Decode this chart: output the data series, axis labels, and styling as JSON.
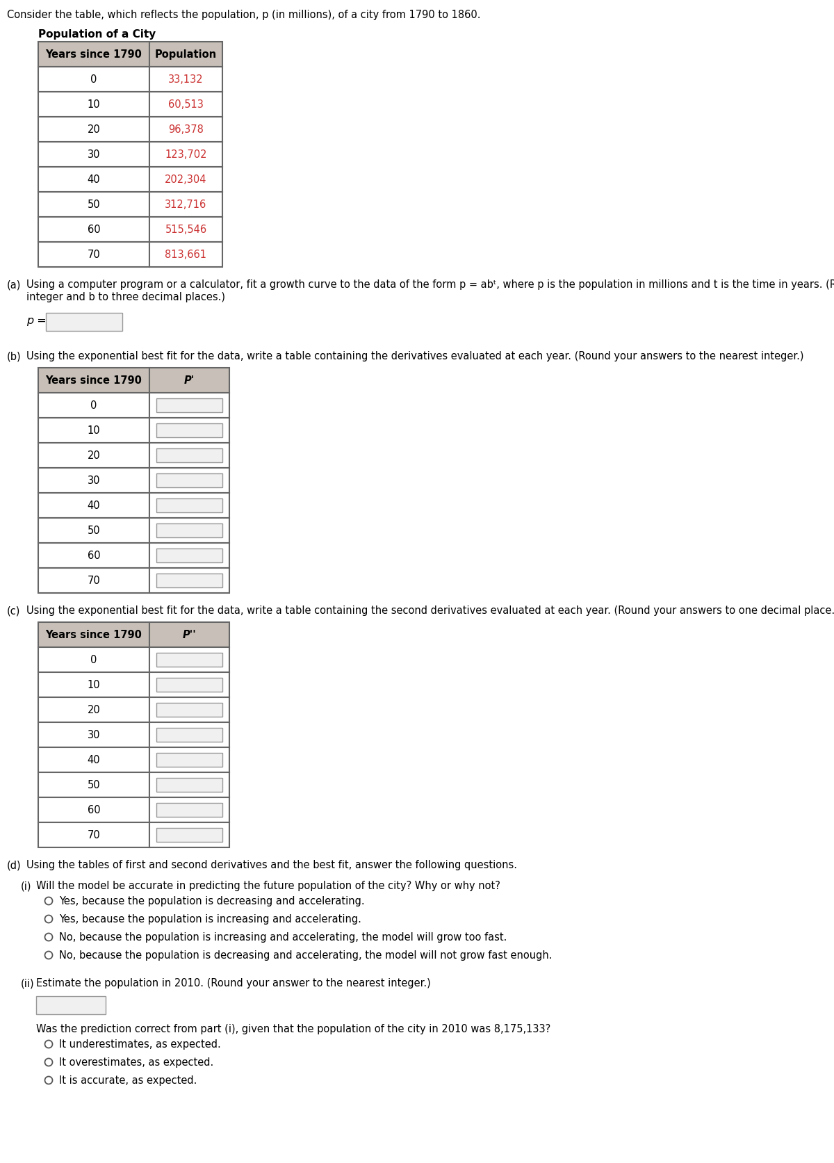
{
  "title_text": "Consider the table, which reflects the population, p (in millions), of a city from 1790 to 1860.",
  "table1_title": "Population of a City",
  "table1_col1": "Years since 1790",
  "table1_col2": "Population",
  "table1_years": [
    "0",
    "10",
    "20",
    "30",
    "40",
    "50",
    "60",
    "70"
  ],
  "table1_pop": [
    "33,132",
    "60,513",
    "96,378",
    "123,702",
    "202,304",
    "312,716",
    "515,546",
    "813,661"
  ],
  "part_a_line1": "Using a computer program or a calculator, fit a growth curve to the data of the form p = abᵗ, where p is the population in millions and t is the time in years. (Round a to the nearest",
  "part_a_line2": "integer and b to three decimal places.)",
  "part_a_p_label": "p =",
  "part_b_text": "Using the exponential best fit for the data, write a table containing the derivatives evaluated at each year. (Round your answers to the nearest integer.)",
  "table2_col1": "Years since 1790",
  "table2_col2": "P'",
  "table_years": [
    "0",
    "10",
    "20",
    "30",
    "40",
    "50",
    "60",
    "70"
  ],
  "part_c_text": "Using the exponential best fit for the data, write a table containing the second derivatives evaluated at each year. (Round your answers to one decimal place.)",
  "table3_col1": "Years since 1790",
  "table3_col2": "P''",
  "part_d_text": "Using the tables of first and second derivatives and the best fit, answer the following questions.",
  "part_d_i_text": "Will the model be accurate in predicting the future population of the city? Why or why not?",
  "radio_options_i": [
    "Yes, because the population is decreasing and accelerating.",
    "Yes, because the population is increasing and accelerating.",
    "No, because the population is increasing and accelerating, the model will grow too fast.",
    "No, because the population is decreasing and accelerating, the model will not grow fast enough."
  ],
  "part_d_ii_text": "Estimate the population in 2010. (Round your answer to the nearest integer.)",
  "part_d_ii_followup": "Was the prediction correct from part (i), given that the population of the city in 2010 was 8,175,133?",
  "radio_options_ii": [
    "It underestimates, as expected.",
    "It overestimates, as expected.",
    "It is accurate, as expected."
  ],
  "bg_color": "#ffffff",
  "text_color": "#000000",
  "red_color": "#cc3333",
  "header_bg": "#c8c0b8",
  "header_text": "#000000",
  "table_border": "#666666",
  "input_bg": "#f0f0f0",
  "input_border": "#999999",
  "radio_color": "#555555"
}
